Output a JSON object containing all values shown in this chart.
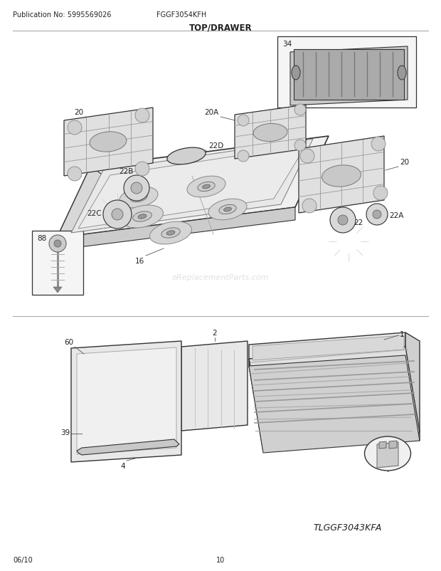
{
  "pub_no": "Publication No: 5995569026",
  "model": "FGGF3054KFH",
  "section_title": "TOP/DRAWER",
  "footer_left": "06/10",
  "footer_center": "10",
  "footer_right": "TLGGF3043KFA",
  "bg_color": "#ffffff",
  "text_color": "#222222",
  "watermark": "eReplacementParts.com",
  "gray_light": "#e8e8e8",
  "gray_mid": "#bbbbbb",
  "gray_dark": "#888888",
  "edge_color": "#333333"
}
